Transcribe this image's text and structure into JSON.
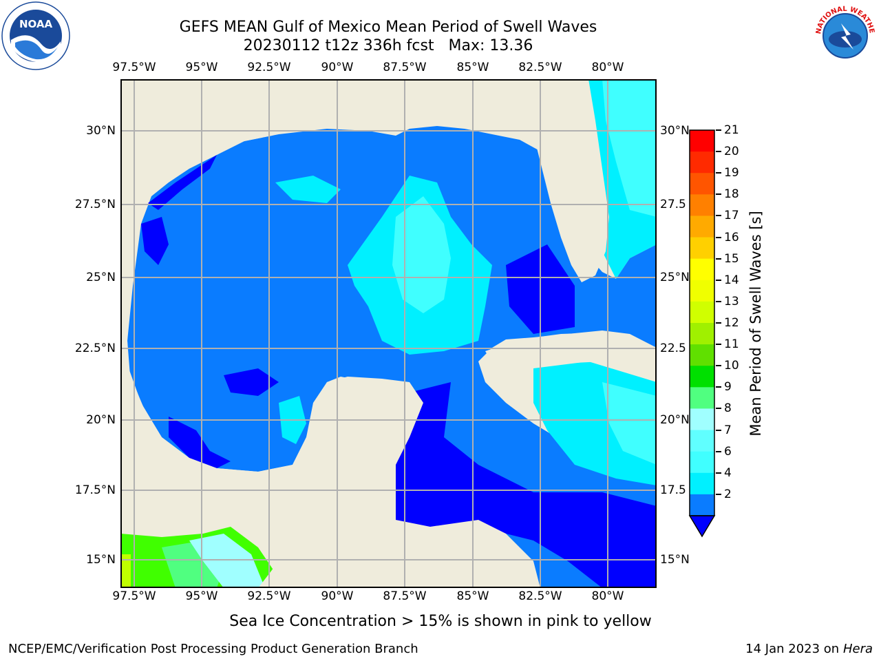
{
  "header": {
    "title_line1": "GEFS MEAN Gulf of Mexico Mean Period of Swell Waves",
    "title_line2": "20230112 t12z 336h fcst   Max: 13.36"
  },
  "map": {
    "lon_ticks": [
      "97.5°W",
      "95°W",
      "92.5°W",
      "90°W",
      "87.5°W",
      "85°W",
      "82.5°W",
      "80°W"
    ],
    "lat_ticks_left": [
      "30°N",
      "27.5°N",
      "25°N",
      "22.5°N",
      "20°N",
      "17.5°N",
      "15°N"
    ],
    "lat_ticks_right": [
      "30°N",
      "27.5",
      "25°N",
      "22.5",
      "20°N",
      "17.5",
      "15°N"
    ],
    "ocean_colors": {
      "2-4": "#0a7cff",
      "below-2": "#0000ff",
      "4-6": "#00f0ff",
      "6-8": "#40ffff",
      "8-9": "#a0ffff",
      "9-10": "#50ff80",
      "10-11": "#00e000",
      "11-12": "#40ff00",
      "12-13": "#c0ff00"
    },
    "land_color": "#efecdc"
  },
  "colorbar": {
    "title": "Mean Period of Swell Waves [s]",
    "labels": [
      "21",
      "20",
      "19",
      "18",
      "17",
      "16",
      "15",
      "14",
      "13",
      "12",
      "11",
      "10",
      "9",
      "8",
      "7",
      "6",
      "4",
      "2"
    ],
    "colors": [
      "#ff0000",
      "#ff2a00",
      "#ff5500",
      "#ff8000",
      "#ffaa00",
      "#ffd000",
      "#ffff00",
      "#f0ff00",
      "#d0ff00",
      "#a0f000",
      "#60e000",
      "#00e000",
      "#50ff80",
      "#a0ffff",
      "#60ffff",
      "#40ffff",
      "#00f0ff",
      "#0a7cff"
    ],
    "extend_color": "#0000ff"
  },
  "footer": {
    "note": "Sea Ice Concentration > 15% is shown in pink to yellow",
    "credit_left": "NCEP/EMC/Verification Post Processing Product Generation Branch",
    "credit_right_date": "14 Jan 2023 on",
    "credit_right_machine": "Hera"
  },
  "logos": {
    "left_text": "NOAA",
    "right_text": "NATIONAL WEATHER SERVICE"
  }
}
